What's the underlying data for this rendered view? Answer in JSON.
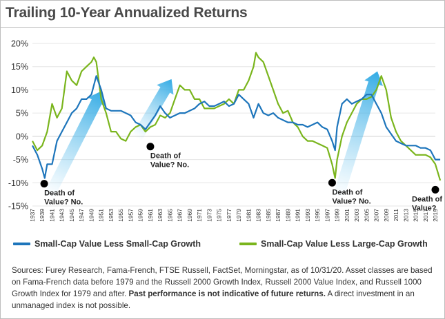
{
  "title": "Trailing 10-Year Annualized Returns",
  "colors": {
    "value_minus_small_growth": "#1d75bb",
    "value_minus_large_growth": "#7ab51d",
    "arrow": "#6cc4ef",
    "marker": "#000000",
    "grid": "#e3e3e3"
  },
  "chart_data": {
    "type": "line",
    "title": "Trailing 10-Year Annualized Returns",
    "xlabel": "",
    "ylabel": "",
    "xlim": [
      1937,
      2019
    ],
    "ylim": [
      -15,
      20
    ],
    "yticks": [
      20,
      15,
      10,
      5,
      0,
      -5,
      -10,
      -15
    ],
    "ytick_labels": [
      "20%",
      "15%",
      "10%",
      "5%",
      "0%",
      "-5%",
      "-10%",
      "-15%"
    ],
    "xticks": [
      "1937",
      "1939",
      "1941",
      "1943",
      "1945",
      "1947",
      "1949",
      "1951",
      "1953",
      "1955",
      "1957",
      "1959",
      "1961",
      "1963",
      "1965",
      "1967",
      "1969",
      "1971",
      "1973",
      "1975",
      "1977",
      "1979",
      "1981",
      "1983",
      "1985",
      "1987",
      "1989",
      "1991",
      "1993",
      "1995",
      "1997",
      "1999",
      "2001",
      "2003",
      "2005",
      "2007",
      "2009",
      "2011",
      "2013",
      "2015",
      "2017",
      "2019"
    ],
    "grid": true,
    "legend_position": "bottom",
    "series": [
      {
        "name": "Small-Cap Value Less Small-Cap Growth",
        "color": "#1d75bb",
        "x": [
          1937,
          1938,
          1939,
          1939.5,
          1940,
          1941,
          1942,
          1943,
          1944,
          1945,
          1946,
          1947,
          1948,
          1949,
          1950,
          1951,
          1952,
          1953,
          1954,
          1955,
          1956,
          1957,
          1958,
          1959,
          1960,
          1961,
          1962,
          1963,
          1964,
          1965,
          1966,
          1967,
          1968,
          1969,
          1970,
          1971,
          1972,
          1973,
          1974,
          1975,
          1976,
          1977,
          1978,
          1979,
          1980,
          1981,
          1982,
          1983,
          1984,
          1985,
          1986,
          1987,
          1988,
          1989,
          1990,
          1991,
          1992,
          1993,
          1994,
          1995,
          1996,
          1997,
          1998,
          1998.6,
          1999,
          2000,
          2001,
          2002,
          2003,
          2004,
          2005,
          2006,
          2007,
          2008,
          2009,
          2010,
          2011,
          2012,
          2013,
          2014,
          2015,
          2016,
          2017,
          2018,
          2019,
          2020
        ],
        "y": [
          -2,
          -4,
          -7,
          -9,
          -6,
          -6,
          -1,
          1,
          3,
          5,
          6,
          8,
          8,
          9,
          13,
          10,
          6,
          5.5,
          5.5,
          5.5,
          5,
          4.5,
          3,
          2.5,
          1.5,
          3,
          4.5,
          6.5,
          5,
          4,
          4.5,
          5,
          5,
          5.5,
          6,
          7,
          7.5,
          6.5,
          6.5,
          7,
          7.5,
          6.5,
          7,
          9,
          8,
          7,
          4,
          7,
          5,
          4.5,
          5,
          4,
          3.5,
          3,
          3,
          2.5,
          2.5,
          2,
          2.5,
          3,
          2,
          1.5,
          -1,
          -3,
          2,
          7,
          8,
          7,
          7.5,
          8,
          9,
          9,
          7,
          5,
          2,
          0.5,
          -1,
          -1.5,
          -2,
          -2,
          -2,
          -2.5,
          -2.5,
          -3,
          -5,
          -5
        ]
      },
      {
        "name": "Small-Cap Value Less Large-Cap Growth",
        "color": "#7ab51d",
        "x": [
          1937,
          1938,
          1939,
          1940,
          1941,
          1942,
          1943,
          1944,
          1945,
          1946,
          1947,
          1948,
          1949,
          1949.5,
          1950,
          1951,
          1952,
          1953,
          1954,
          1955,
          1956,
          1957,
          1958,
          1959,
          1960,
          1961,
          1962,
          1963,
          1964,
          1965,
          1966,
          1967,
          1968,
          1969,
          1970,
          1971,
          1972,
          1973,
          1974,
          1975,
          1976,
          1977,
          1978,
          1979,
          1980,
          1981,
          1982,
          1982.5,
          1983,
          1984,
          1985,
          1986,
          1987,
          1988,
          1989,
          1990,
          1991,
          1992,
          1993,
          1994,
          1995,
          1996,
          1997,
          1998,
          1998.6,
          1999,
          2000,
          2001,
          2002,
          2003,
          2004,
          2005,
          2006,
          2007,
          2008,
          2009,
          2010,
          2011,
          2012,
          2013,
          2014,
          2015,
          2016,
          2017,
          2018,
          2019,
          2020
        ],
        "y": [
          -1,
          -3,
          -2,
          1,
          7,
          4,
          6,
          14,
          12,
          11,
          14,
          15,
          16,
          17,
          16,
          8,
          5,
          1,
          1,
          -0.5,
          -1,
          1,
          2,
          2.5,
          1,
          2,
          2.5,
          4.5,
          4,
          5,
          8,
          11,
          10,
          10,
          8,
          8,
          6,
          6,
          6,
          6.5,
          7,
          8,
          7,
          10,
          10,
          12,
          15,
          18,
          17,
          16,
          13,
          10,
          7,
          5,
          5.5,
          3,
          2,
          0,
          -1,
          -1,
          -1.5,
          -2,
          -2.5,
          -6,
          -9,
          -5,
          0,
          3,
          5,
          7,
          8,
          8,
          8.5,
          10,
          13,
          10,
          4,
          1,
          -1,
          -2,
          -3,
          -4,
          -4,
          -4,
          -4.5,
          -6,
          -9.5
        ]
      }
    ],
    "annotations": [
      {
        "text": [
          "Death of",
          "Value? No."
        ],
        "x": 1939.4,
        "y": -10.2
      },
      {
        "text": [
          "Death of",
          "Value? No."
        ],
        "x": 1961.0,
        "y": -2.2
      },
      {
        "text": [
          "Death of",
          "Value? No."
        ],
        "x": 1998.0,
        "y": -10.0
      },
      {
        "text": [
          "Death of",
          "Value?"
        ],
        "x": 2019.0,
        "y": -11.5
      }
    ],
    "arrows": [
      {
        "from": [
          1940.3,
          -13.0
        ],
        "to": [
          1951.2,
          9.8
        ]
      },
      {
        "from": [
          1958.2,
          -0.4
        ],
        "to": [
          1965.3,
          12.3
        ]
      },
      {
        "from": [
          1999.2,
          -13.2
        ],
        "to": [
          2007.2,
          14.0
        ]
      }
    ]
  },
  "legend": {
    "items": [
      {
        "label": "Small-Cap Value Less Small-Cap Growth"
      },
      {
        "label": "Small-Cap Value Less Large-Cap Growth"
      }
    ]
  },
  "sources": {
    "text1": "Sources: Furey Research, Fama-French, FTSE Russell, FactSet, Morningstar, as of 10/31/20. Asset classes are based on Fama-French data before 1979 and the Russell 2000 Growth Index, Russell 2000 Value Index, and Russell 1000 Growth Index for 1979 and after. ",
    "bold": "Past performance is not indicative of future returns.",
    "text2": " A direct investment in an unmanaged index is not possible."
  }
}
